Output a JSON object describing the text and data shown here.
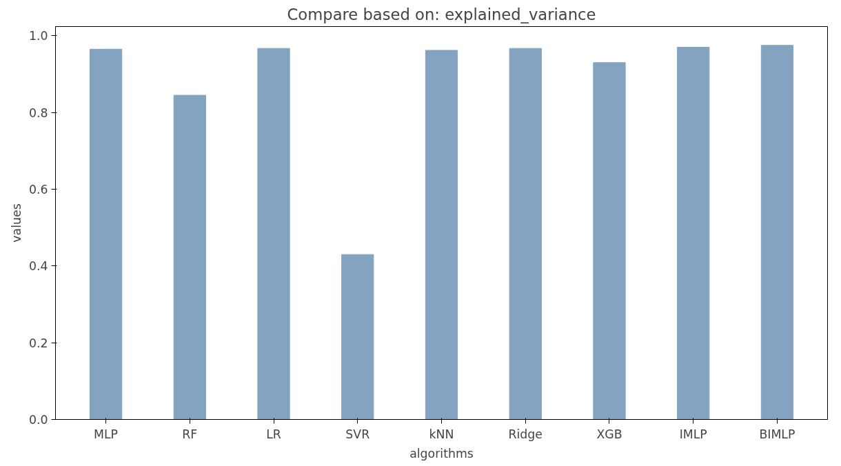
{
  "chart_data": {
    "type": "bar",
    "title": "Compare based on: explained_variance",
    "xlabel": "algorithms",
    "ylabel": "values",
    "categories": [
      "MLP",
      "RF",
      "LR",
      "SVR",
      "kNN",
      "Ridge",
      "XGB",
      "IMLP",
      "BIMLP"
    ],
    "values": [
      0.965,
      0.845,
      0.967,
      0.43,
      0.962,
      0.967,
      0.93,
      0.97,
      0.975
    ],
    "color": "#84a3c1",
    "ylim": [
      0,
      1.024
    ],
    "yticks": [
      {
        "value": 0,
        "label": "0.0"
      },
      {
        "value": 0.2,
        "label": "0.2"
      },
      {
        "value": 0.4,
        "label": "0.4"
      },
      {
        "value": 0.6,
        "label": "0.6"
      },
      {
        "value": 0.8,
        "label": "0.8"
      },
      {
        "value": 1,
        "label": "1.0"
      }
    ],
    "grid": false
  }
}
